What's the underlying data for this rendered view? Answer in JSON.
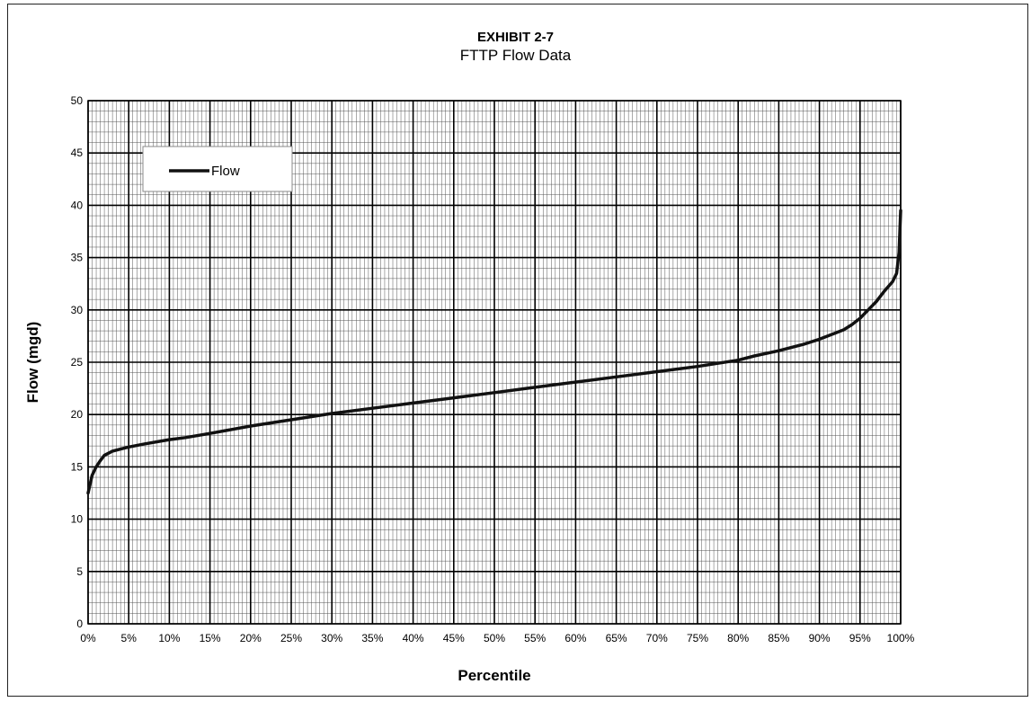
{
  "chart_data": {
    "type": "line",
    "title": "EXHIBIT 2-7",
    "subtitle": "FTTP Flow Data",
    "xlabel": "Percentile",
    "ylabel": "Flow (mgd)",
    "xlim": [
      0,
      100
    ],
    "ylim": [
      0,
      50
    ],
    "x_ticks": [
      0,
      5,
      10,
      15,
      20,
      25,
      30,
      35,
      40,
      45,
      50,
      55,
      60,
      65,
      70,
      75,
      80,
      85,
      90,
      95,
      100
    ],
    "x_tick_labels": [
      "0%",
      "5%",
      "10%",
      "15%",
      "20%",
      "25%",
      "30%",
      "35%",
      "40%",
      "45%",
      "50%",
      "55%",
      "60%",
      "65%",
      "70%",
      "75%",
      "80%",
      "85%",
      "90%",
      "95%",
      "100%"
    ],
    "y_ticks": [
      0,
      5,
      10,
      15,
      20,
      25,
      30,
      35,
      40,
      45,
      50
    ],
    "y_tick_labels": [
      "0",
      "5",
      "10",
      "15",
      "20",
      "25",
      "30",
      "35",
      "40",
      "45",
      "50"
    ],
    "grid": true,
    "legend_position": "top-left",
    "series": [
      {
        "name": "Flow",
        "color": "#111111",
        "x": [
          0,
          0.5,
          1,
          1.5,
          2,
          3,
          4,
          5,
          7,
          10,
          12,
          15,
          20,
          25,
          30,
          35,
          40,
          45,
          50,
          55,
          60,
          65,
          70,
          75,
          80,
          82,
          85,
          88,
          90,
          92,
          93,
          94,
          95,
          96,
          97,
          98,
          99,
          99.5,
          99.8,
          100
        ],
        "y": [
          12.5,
          14.2,
          15.0,
          15.6,
          16.1,
          16.5,
          16.7,
          16.9,
          17.2,
          17.6,
          17.8,
          18.2,
          18.9,
          19.5,
          20.1,
          20.6,
          21.1,
          21.6,
          22.1,
          22.6,
          23.1,
          23.6,
          24.1,
          24.6,
          25.2,
          25.6,
          26.1,
          26.7,
          27.2,
          27.8,
          28.1,
          28.6,
          29.2,
          30.0,
          30.8,
          31.8,
          32.7,
          33.5,
          35.5,
          39.5
        ]
      }
    ]
  }
}
